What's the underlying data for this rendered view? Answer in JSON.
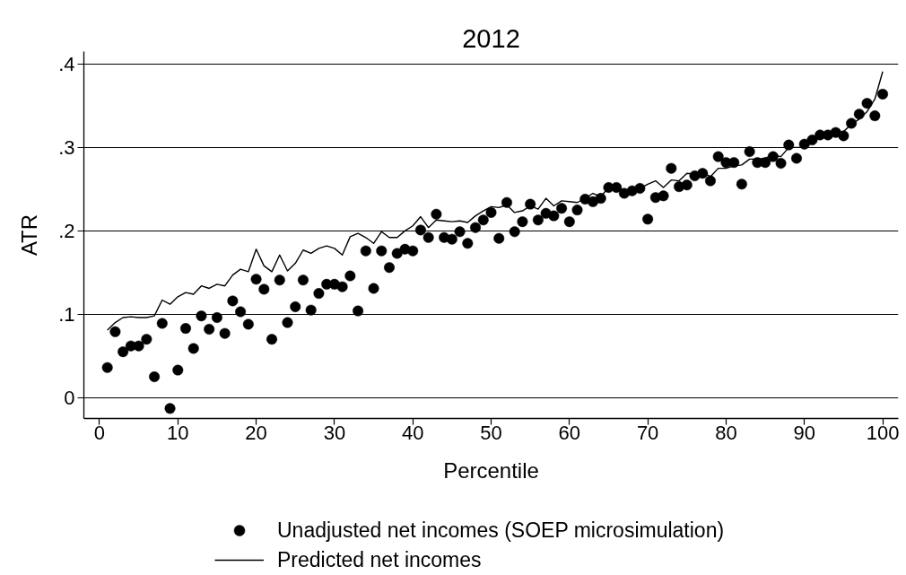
{
  "chart_data": {
    "type": "scatter",
    "title": "2012",
    "xlabel": "Percentile",
    "ylabel": "ATR",
    "x": [
      1,
      2,
      3,
      4,
      5,
      6,
      7,
      8,
      9,
      10,
      11,
      12,
      13,
      14,
      15,
      16,
      17,
      18,
      19,
      20,
      21,
      22,
      23,
      24,
      25,
      26,
      27,
      28,
      29,
      30,
      31,
      32,
      33,
      34,
      35,
      36,
      37,
      38,
      39,
      40,
      41,
      42,
      43,
      44,
      45,
      46,
      47,
      48,
      49,
      50,
      51,
      52,
      53,
      54,
      55,
      56,
      57,
      58,
      59,
      60,
      61,
      62,
      63,
      64,
      65,
      66,
      67,
      68,
      69,
      70,
      71,
      72,
      73,
      74,
      75,
      76,
      77,
      78,
      79,
      80,
      81,
      82,
      83,
      84,
      85,
      86,
      87,
      88,
      89,
      90,
      91,
      92,
      93,
      94,
      95,
      96,
      97,
      98,
      99,
      100
    ],
    "xlim": [
      -2,
      102
    ],
    "ylim": [
      -0.025,
      0.415
    ],
    "xticks": [
      0,
      10,
      20,
      30,
      40,
      50,
      60,
      70,
      80,
      90,
      100
    ],
    "yticks": [
      0,
      {
        "value": 0.1,
        "label": ".1"
      },
      {
        "value": 0.2,
        "label": ".2"
      },
      {
        "value": 0.3,
        "label": ".3"
      },
      {
        "value": 0.4,
        "label": ".4"
      }
    ],
    "grid": "y",
    "legend": "bottom",
    "series": [
      {
        "name": "Unadjusted net incomes (SOEP microsimulation)",
        "marker": "circle",
        "color": "#000000",
        "values": [
          0.036,
          0.079,
          0.055,
          0.062,
          0.062,
          0.07,
          0.025,
          0.089,
          -0.013,
          0.033,
          0.083,
          0.059,
          0.098,
          0.082,
          0.096,
          0.077,
          0.116,
          0.103,
          0.088,
          0.142,
          0.13,
          0.07,
          0.141,
          0.09,
          0.109,
          0.141,
          0.105,
          0.125,
          0.136,
          0.136,
          0.133,
          0.146,
          0.104,
          0.176,
          0.131,
          0.176,
          0.156,
          0.173,
          0.178,
          0.176,
          0.201,
          0.192,
          0.22,
          0.192,
          0.19,
          0.199,
          0.185,
          0.204,
          0.213,
          0.222,
          0.191,
          0.234,
          0.199,
          0.211,
          0.232,
          0.213,
          0.221,
          0.218,
          0.227,
          0.211,
          0.225,
          0.238,
          0.235,
          0.239,
          0.252,
          0.252,
          0.245,
          0.248,
          0.251,
          0.214,
          0.24,
          0.242,
          0.275,
          0.253,
          0.255,
          0.266,
          0.269,
          0.26,
          0.289,
          0.282,
          0.282,
          0.256,
          0.295,
          0.282,
          0.282,
          0.289,
          0.281,
          0.303,
          0.287,
          0.304,
          0.309,
          0.315,
          0.315,
          0.318,
          0.314,
          0.329,
          0.34,
          0.353,
          0.338,
          0.364
        ]
      },
      {
        "name": "Predicted net incomes",
        "type": "line",
        "line_style": "solid",
        "color": "#000000",
        "values": [
          0.081,
          0.09,
          0.096,
          0.097,
          0.096,
          0.096,
          0.098,
          0.117,
          0.112,
          0.121,
          0.126,
          0.124,
          0.134,
          0.131,
          0.136,
          0.134,
          0.147,
          0.154,
          0.151,
          0.178,
          0.158,
          0.151,
          0.171,
          0.152,
          0.161,
          0.177,
          0.173,
          0.179,
          0.182,
          0.179,
          0.171,
          0.193,
          0.197,
          0.192,
          0.185,
          0.199,
          0.192,
          0.192,
          0.2,
          0.206,
          0.217,
          0.204,
          0.213,
          0.212,
          0.211,
          0.212,
          0.21,
          0.218,
          0.224,
          0.229,
          0.228,
          0.231,
          0.222,
          0.224,
          0.23,
          0.226,
          0.239,
          0.23,
          0.236,
          0.235,
          0.234,
          0.239,
          0.245,
          0.241,
          0.252,
          0.252,
          0.248,
          0.249,
          0.251,
          0.256,
          0.26,
          0.252,
          0.261,
          0.26,
          0.269,
          0.268,
          0.27,
          0.265,
          0.275,
          0.275,
          0.278,
          0.279,
          0.286,
          0.286,
          0.287,
          0.291,
          0.289,
          0.3,
          0.3,
          0.3,
          0.306,
          0.312,
          0.315,
          0.317,
          0.319,
          0.328,
          0.334,
          0.343,
          0.358,
          0.391
        ]
      }
    ]
  }
}
